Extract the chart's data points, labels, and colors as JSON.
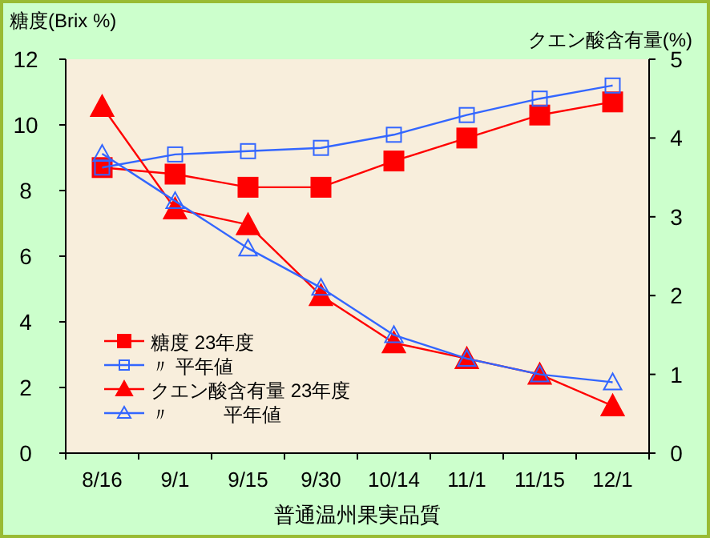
{
  "chart_data": {
    "type": "line",
    "xlabel": "普通温州果実品質",
    "ylabel": "糖度(Brix %)",
    "y2label": "クエン酸含有量(%)",
    "categories": [
      "8/16",
      "9/1",
      "9/15",
      "9/30",
      "10/14",
      "11/1",
      "11/15",
      "12/1"
    ],
    "ylim": [
      0,
      12
    ],
    "yticks": [
      0,
      2,
      4,
      6,
      8,
      10,
      12
    ],
    "y2lim": [
      0,
      5
    ],
    "y2ticks": [
      0,
      1,
      2,
      3,
      4,
      5
    ],
    "legend": "bottom left",
    "grid": false,
    "series": [
      {
        "name": "糖度 23年度",
        "color": "#ff0000",
        "marker": "square",
        "values": [
          8.7,
          8.5,
          8.1,
          8.1,
          8.9,
          9.6,
          10.3,
          10.7
        ]
      },
      {
        "name": "〃 平年値",
        "color": "#3366ff",
        "marker": "square",
        "values": [
          8.7,
          9.1,
          9.2,
          9.3,
          9.7,
          10.3,
          10.8,
          11.2
        ]
      },
      {
        "name": "クエン酸含有量 23年度",
        "color": "#ff0000",
        "marker": "triangle",
        "axis": "y2",
        "values": [
          4.4,
          3.1,
          2.9,
          2.0,
          1.4,
          1.2,
          1.0,
          0.6
        ]
      },
      {
        "name": "〃          平年値",
        "color": "#3366ff",
        "marker": "triangle",
        "axis": "y2",
        "values": [
          3.8,
          3.2,
          2.6,
          2.1,
          1.5,
          1.2,
          1.0,
          0.9
        ]
      }
    ]
  }
}
